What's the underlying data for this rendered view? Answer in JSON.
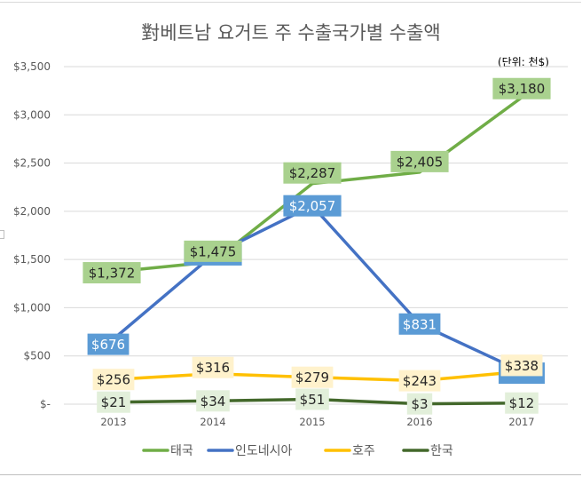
{
  "chart_data": {
    "type": "line",
    "title": "對베트남 요거트 주 수출국가별 수출액",
    "unit_note": "(단위: 천$)",
    "xlabel": "",
    "ylabel": "",
    "x": [
      "2013",
      "2014",
      "2015",
      "2016",
      "2017"
    ],
    "ylim": [
      0,
      3500
    ],
    "yticks": [
      0,
      500,
      1000,
      1500,
      2000,
      2500,
      3000,
      3500
    ],
    "ytick_labels": [
      "$-",
      "$500",
      "$1,000",
      "$1,500",
      "$2,000",
      "$2,500",
      "$3,000",
      "$3,500"
    ],
    "grid": true,
    "legend_position": "bottom",
    "series": [
      {
        "name": "태국",
        "color": "#70ad47",
        "label_bg": "#a9d18e",
        "label_color": "#262626",
        "values": [
          1372,
          1475,
          2287,
          2405,
          3180
        ],
        "labels": [
          "$1,372",
          "$1,475",
          "$2,287",
          "$2,405",
          "$3,180"
        ]
      },
      {
        "name": "인도네시아",
        "color": "#4472c4",
        "label_bg": "#5b9bd5",
        "label_color": "#ffffff",
        "values": [
          676,
          1548,
          2057,
          831,
          340
        ],
        "labels": [
          "$676",
          "$1,548",
          "$2,057",
          "$831",
          ""
        ]
      },
      {
        "name": "호주",
        "color": "#ffc000",
        "label_bg": "#fff2cc",
        "label_color": "#262626",
        "values": [
          256,
          316,
          279,
          243,
          338
        ],
        "labels": [
          "$256",
          "$316",
          "$279",
          "$243",
          "$338"
        ]
      },
      {
        "name": "한국",
        "color": "#43682b",
        "label_bg": "#e2efda",
        "label_color": "#262626",
        "values": [
          21,
          34,
          51,
          3,
          12
        ],
        "labels": [
          "$21",
          "$34",
          "$51",
          "$3",
          "$12"
        ]
      }
    ]
  }
}
